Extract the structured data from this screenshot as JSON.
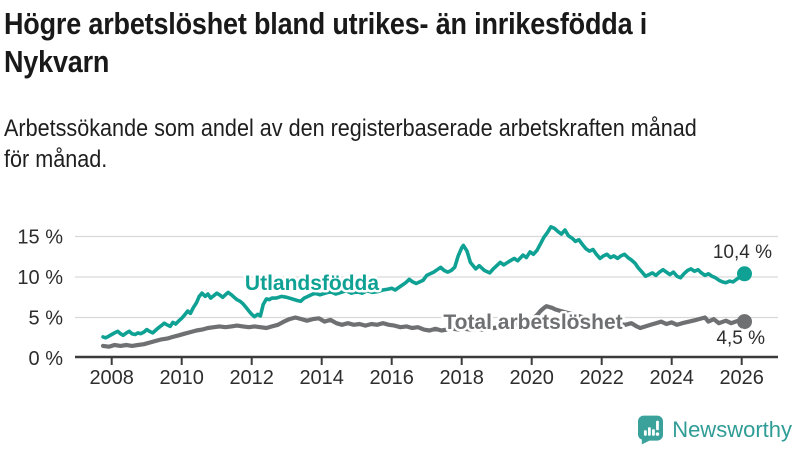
{
  "header": {
    "title": "Högre arbetslöshet bland utrikes- än inrikesfödda i Nykvarn",
    "title_lines": [
      "Högre arbetslöshet bland utrikes- än inrikesfödda i",
      "Nykvarn"
    ],
    "subtitle": "Arbetssökande som andel av den registerbaserade arbetskraften månad för månad.",
    "subtitle_lines": [
      "Arbetssökande som andel av den registerbaserade arbetskraften månad",
      "för månad."
    ]
  },
  "footer": {
    "brand": "Newsworthy",
    "brand_color": "#2f9c95",
    "logo_icon": "bar-chart-speech-bubble-icon"
  },
  "chart_data": {
    "type": "line",
    "unit": "%",
    "grid": "horizontal",
    "x_axis": {
      "ticks": [
        2008,
        2010,
        2012,
        2014,
        2016,
        2018,
        2020,
        2022,
        2024,
        2026
      ],
      "labels": [
        "2008",
        "2010",
        "2012",
        "2014",
        "2016",
        "2018",
        "2020",
        "2022",
        "2024",
        "2026"
      ]
    },
    "y_axis": {
      "ticks": [
        0,
        5,
        10,
        15
      ],
      "labels": [
        "0 %",
        "5 %",
        "10 %",
        "15 %"
      ],
      "range": [
        0,
        17
      ]
    },
    "series": [
      {
        "name": "Utlandsfödda",
        "color": "#0fa294",
        "end_label": "10,4 %",
        "end_value": 10.4,
        "points": [
          [
            2007.75,
            2.6
          ],
          [
            2007.83,
            2.5
          ],
          [
            2007.92,
            2.7
          ],
          [
            2008.0,
            2.9
          ],
          [
            2008.08,
            3.1
          ],
          [
            2008.17,
            3.3
          ],
          [
            2008.25,
            3.0
          ],
          [
            2008.33,
            2.8
          ],
          [
            2008.42,
            3.1
          ],
          [
            2008.5,
            3.3
          ],
          [
            2008.58,
            3.0
          ],
          [
            2008.67,
            2.9
          ],
          [
            2008.75,
            3.1
          ],
          [
            2008.83,
            3.0
          ],
          [
            2008.92,
            3.2
          ],
          [
            2009.0,
            3.5
          ],
          [
            2009.08,
            3.3
          ],
          [
            2009.17,
            3.1
          ],
          [
            2009.25,
            3.4
          ],
          [
            2009.33,
            3.7
          ],
          [
            2009.42,
            4.0
          ],
          [
            2009.5,
            4.3
          ],
          [
            2009.58,
            4.1
          ],
          [
            2009.67,
            3.9
          ],
          [
            2009.75,
            4.4
          ],
          [
            2009.83,
            4.2
          ],
          [
            2009.92,
            4.6
          ],
          [
            2010.0,
            4.9
          ],
          [
            2010.08,
            5.3
          ],
          [
            2010.17,
            5.8
          ],
          [
            2010.25,
            5.5
          ],
          [
            2010.33,
            6.2
          ],
          [
            2010.42,
            6.8
          ],
          [
            2010.5,
            7.6
          ],
          [
            2010.58,
            8.0
          ],
          [
            2010.67,
            7.6
          ],
          [
            2010.75,
            7.9
          ],
          [
            2010.83,
            7.4
          ],
          [
            2010.92,
            7.7
          ],
          [
            2011.0,
            8.0
          ],
          [
            2011.08,
            7.8
          ],
          [
            2011.17,
            7.5
          ],
          [
            2011.25,
            7.8
          ],
          [
            2011.33,
            8.1
          ],
          [
            2011.42,
            7.8
          ],
          [
            2011.5,
            7.5
          ],
          [
            2011.58,
            7.2
          ],
          [
            2011.67,
            7.0
          ],
          [
            2011.75,
            6.7
          ],
          [
            2011.83,
            6.3
          ],
          [
            2011.92,
            5.8
          ],
          [
            2012.0,
            5.4
          ],
          [
            2012.08,
            5.1
          ],
          [
            2012.17,
            5.4
          ],
          [
            2012.25,
            5.2
          ],
          [
            2012.33,
            6.6
          ],
          [
            2012.42,
            7.3
          ],
          [
            2012.5,
            7.2
          ],
          [
            2012.58,
            7.4
          ],
          [
            2012.7,
            7.4
          ],
          [
            2012.85,
            7.6
          ],
          [
            2013.0,
            7.5
          ],
          [
            2013.15,
            7.3
          ],
          [
            2013.3,
            7.1
          ],
          [
            2013.4,
            7.0
          ],
          [
            2013.5,
            7.4
          ],
          [
            2013.65,
            7.7
          ],
          [
            2013.8,
            8.0
          ],
          [
            2013.95,
            7.8
          ],
          [
            2014.1,
            8.0
          ],
          [
            2014.25,
            8.2
          ],
          [
            2014.4,
            7.9
          ],
          [
            2014.55,
            8.1
          ],
          [
            2014.7,
            8.3
          ],
          [
            2014.85,
            8.0
          ],
          [
            2015.0,
            8.2
          ],
          [
            2015.15,
            8.0
          ],
          [
            2015.3,
            8.3
          ],
          [
            2015.45,
            8.1
          ],
          [
            2015.6,
            8.2
          ],
          [
            2015.75,
            8.4
          ],
          [
            2015.9,
            8.5
          ],
          [
            2016.0,
            8.6
          ],
          [
            2016.1,
            8.4
          ],
          [
            2016.2,
            8.7
          ],
          [
            2016.3,
            9.0
          ],
          [
            2016.4,
            9.3
          ],
          [
            2016.5,
            9.7
          ],
          [
            2016.6,
            9.4
          ],
          [
            2016.7,
            9.2
          ],
          [
            2016.8,
            9.4
          ],
          [
            2016.9,
            9.6
          ],
          [
            2017.0,
            10.2
          ],
          [
            2017.1,
            10.4
          ],
          [
            2017.2,
            10.6
          ],
          [
            2017.3,
            10.9
          ],
          [
            2017.4,
            11.2
          ],
          [
            2017.5,
            10.8
          ],
          [
            2017.6,
            10.6
          ],
          [
            2017.7,
            10.8
          ],
          [
            2017.8,
            11.2
          ],
          [
            2017.9,
            12.6
          ],
          [
            2018.0,
            13.6
          ],
          [
            2018.05,
            13.9
          ],
          [
            2018.15,
            13.2
          ],
          [
            2018.25,
            11.8
          ],
          [
            2018.4,
            11.0
          ],
          [
            2018.5,
            11.4
          ],
          [
            2018.65,
            10.8
          ],
          [
            2018.8,
            10.5
          ],
          [
            2018.9,
            11.0
          ],
          [
            2019.0,
            11.4
          ],
          [
            2019.1,
            11.8
          ],
          [
            2019.2,
            11.5
          ],
          [
            2019.35,
            11.9
          ],
          [
            2019.5,
            12.3
          ],
          [
            2019.6,
            12.0
          ],
          [
            2019.75,
            12.7
          ],
          [
            2019.85,
            12.4
          ],
          [
            2019.95,
            13.1
          ],
          [
            2020.05,
            12.8
          ],
          [
            2020.15,
            13.3
          ],
          [
            2020.25,
            14.1
          ],
          [
            2020.35,
            14.9
          ],
          [
            2020.45,
            15.5
          ],
          [
            2020.55,
            16.2
          ],
          [
            2020.65,
            16.0
          ],
          [
            2020.75,
            15.6
          ],
          [
            2020.85,
            15.3
          ],
          [
            2020.95,
            15.8
          ],
          [
            2021.05,
            15.1
          ],
          [
            2021.15,
            14.8
          ],
          [
            2021.25,
            14.4
          ],
          [
            2021.35,
            14.6
          ],
          [
            2021.45,
            14.0
          ],
          [
            2021.55,
            13.5
          ],
          [
            2021.65,
            13.2
          ],
          [
            2021.75,
            13.4
          ],
          [
            2021.85,
            12.8
          ],
          [
            2021.95,
            12.3
          ],
          [
            2022.05,
            12.6
          ],
          [
            2022.15,
            12.8
          ],
          [
            2022.25,
            12.4
          ],
          [
            2022.35,
            12.6
          ],
          [
            2022.45,
            12.3
          ],
          [
            2022.55,
            12.6
          ],
          [
            2022.65,
            12.8
          ],
          [
            2022.75,
            12.4
          ],
          [
            2022.85,
            12.1
          ],
          [
            2022.95,
            11.7
          ],
          [
            2023.05,
            11.1
          ],
          [
            2023.15,
            10.6
          ],
          [
            2023.25,
            10.1
          ],
          [
            2023.35,
            10.3
          ],
          [
            2023.45,
            10.5
          ],
          [
            2023.55,
            10.2
          ],
          [
            2023.65,
            10.6
          ],
          [
            2023.75,
            10.9
          ],
          [
            2023.85,
            10.6
          ],
          [
            2023.95,
            10.3
          ],
          [
            2024.05,
            10.6
          ],
          [
            2024.15,
            10.1
          ],
          [
            2024.25,
            9.9
          ],
          [
            2024.35,
            10.4
          ],
          [
            2024.45,
            10.8
          ],
          [
            2024.55,
            11.0
          ],
          [
            2024.65,
            10.7
          ],
          [
            2024.75,
            10.9
          ],
          [
            2024.85,
            10.5
          ],
          [
            2024.95,
            10.2
          ],
          [
            2025.05,
            10.4
          ],
          [
            2025.15,
            10.1
          ],
          [
            2025.25,
            9.9
          ],
          [
            2025.35,
            9.6
          ],
          [
            2025.45,
            9.4
          ],
          [
            2025.55,
            9.3
          ],
          [
            2025.65,
            9.5
          ],
          [
            2025.75,
            9.4
          ],
          [
            2025.85,
            9.7
          ],
          [
            2025.95,
            10.0
          ],
          [
            2026.08,
            10.4
          ]
        ]
      },
      {
        "name": "Total arbetslöshet",
        "color": "#6f7072",
        "end_label": "4,5 %",
        "end_value": 4.5,
        "points": [
          [
            2007.75,
            1.5
          ],
          [
            2007.92,
            1.4
          ],
          [
            2008.08,
            1.6
          ],
          [
            2008.25,
            1.5
          ],
          [
            2008.42,
            1.6
          ],
          [
            2008.58,
            1.5
          ],
          [
            2008.75,
            1.6
          ],
          [
            2008.92,
            1.7
          ],
          [
            2009.08,
            1.9
          ],
          [
            2009.25,
            2.1
          ],
          [
            2009.42,
            2.3
          ],
          [
            2009.58,
            2.4
          ],
          [
            2009.75,
            2.6
          ],
          [
            2009.92,
            2.8
          ],
          [
            2010.08,
            3.0
          ],
          [
            2010.25,
            3.2
          ],
          [
            2010.42,
            3.4
          ],
          [
            2010.58,
            3.5
          ],
          [
            2010.75,
            3.7
          ],
          [
            2010.92,
            3.8
          ],
          [
            2011.08,
            3.9
          ],
          [
            2011.25,
            3.8
          ],
          [
            2011.42,
            3.9
          ],
          [
            2011.58,
            4.0
          ],
          [
            2011.75,
            3.9
          ],
          [
            2011.92,
            3.8
          ],
          [
            2012.08,
            3.9
          ],
          [
            2012.25,
            3.8
          ],
          [
            2012.42,
            3.7
          ],
          [
            2012.58,
            3.9
          ],
          [
            2012.75,
            4.1
          ],
          [
            2012.92,
            4.5
          ],
          [
            2013.08,
            4.8
          ],
          [
            2013.25,
            5.0
          ],
          [
            2013.42,
            4.8
          ],
          [
            2013.58,
            4.6
          ],
          [
            2013.75,
            4.8
          ],
          [
            2013.92,
            4.9
          ],
          [
            2014.08,
            4.5
          ],
          [
            2014.25,
            4.7
          ],
          [
            2014.42,
            4.3
          ],
          [
            2014.58,
            4.1
          ],
          [
            2014.75,
            4.3
          ],
          [
            2014.92,
            4.1
          ],
          [
            2015.08,
            4.2
          ],
          [
            2015.25,
            4.0
          ],
          [
            2015.42,
            4.2
          ],
          [
            2015.58,
            4.1
          ],
          [
            2015.75,
            4.3
          ],
          [
            2015.92,
            4.1
          ],
          [
            2016.08,
            4.0
          ],
          [
            2016.25,
            3.8
          ],
          [
            2016.42,
            3.9
          ],
          [
            2016.58,
            3.7
          ],
          [
            2016.75,
            3.8
          ],
          [
            2016.92,
            3.5
          ],
          [
            2017.08,
            3.4
          ],
          [
            2017.25,
            3.6
          ],
          [
            2017.42,
            3.4
          ],
          [
            2017.58,
            3.5
          ],
          [
            2017.75,
            3.6
          ],
          [
            2017.92,
            3.5
          ],
          [
            2018.08,
            3.6
          ],
          [
            2018.25,
            3.5
          ],
          [
            2018.42,
            3.6
          ],
          [
            2018.58,
            3.5
          ],
          [
            2018.75,
            3.6
          ],
          [
            2018.92,
            3.7
          ],
          [
            2019.08,
            3.8
          ],
          [
            2019.25,
            3.9
          ],
          [
            2019.42,
            4.0
          ],
          [
            2019.58,
            4.2
          ],
          [
            2019.75,
            4.4
          ],
          [
            2019.92,
            4.6
          ],
          [
            2020.08,
            5.0
          ],
          [
            2020.17,
            5.4
          ],
          [
            2020.25,
            5.8
          ],
          [
            2020.33,
            6.1
          ],
          [
            2020.42,
            6.4
          ],
          [
            2020.5,
            6.3
          ],
          [
            2020.58,
            6.2
          ],
          [
            2020.67,
            6.0
          ],
          [
            2020.83,
            5.8
          ],
          [
            2021.0,
            5.6
          ],
          [
            2021.17,
            5.4
          ],
          [
            2021.33,
            5.2
          ],
          [
            2021.5,
            5.0
          ],
          [
            2021.67,
            4.8
          ],
          [
            2021.83,
            4.6
          ],
          [
            2022.0,
            4.5
          ],
          [
            2022.17,
            4.4
          ],
          [
            2022.33,
            4.3
          ],
          [
            2022.5,
            4.2
          ],
          [
            2022.67,
            4.1
          ],
          [
            2022.85,
            4.3
          ],
          [
            2023.0,
            3.9
          ],
          [
            2023.1,
            3.7
          ],
          [
            2023.25,
            3.9
          ],
          [
            2023.4,
            4.1
          ],
          [
            2023.55,
            4.3
          ],
          [
            2023.7,
            4.5
          ],
          [
            2023.85,
            4.2
          ],
          [
            2024.0,
            4.4
          ],
          [
            2024.15,
            4.1
          ],
          [
            2024.3,
            4.3
          ],
          [
            2024.5,
            4.5
          ],
          [
            2024.7,
            4.7
          ],
          [
            2024.95,
            5.0
          ],
          [
            2025.05,
            4.5
          ],
          [
            2025.2,
            4.8
          ],
          [
            2025.35,
            4.3
          ],
          [
            2025.55,
            4.6
          ],
          [
            2025.7,
            4.3
          ],
          [
            2025.9,
            4.6
          ],
          [
            2026.08,
            4.5
          ]
        ]
      }
    ]
  }
}
